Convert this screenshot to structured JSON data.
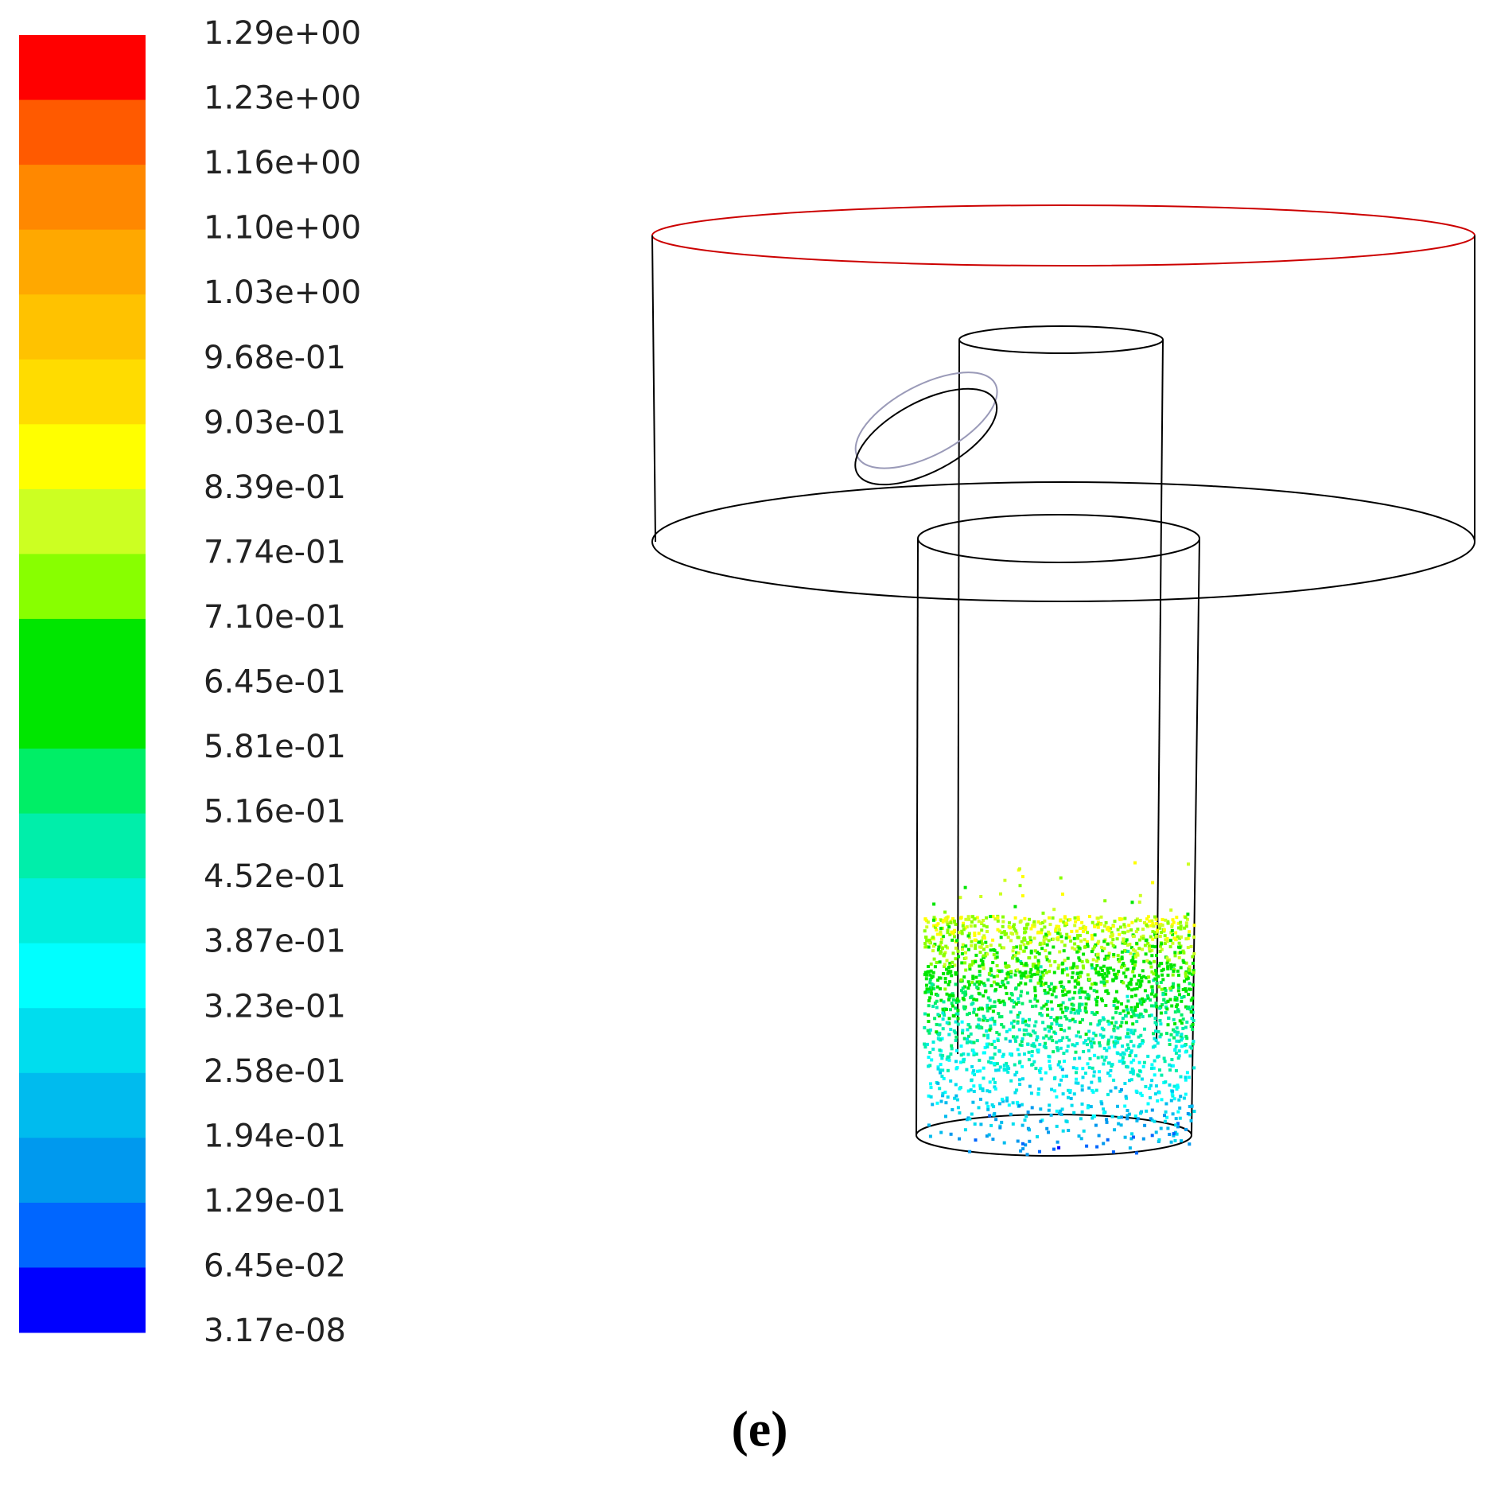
{
  "colorbar": {
    "labels": [
      "1.29e+00",
      "1.23e+00",
      "1.16e+00",
      "1.10e+00",
      "1.03e+00",
      "9.68e-01",
      "9.03e-01",
      "8.39e-01",
      "7.74e-01",
      "7.10e-01",
      "6.45e-01",
      "5.81e-01",
      "5.16e-01",
      "4.52e-01",
      "3.87e-01",
      "3.23e-01",
      "2.58e-01",
      "1.94e-01",
      "1.29e-01",
      "6.45e-02",
      "3.17e-08"
    ],
    "colors": [
      "#ff0000",
      "#ff5a00",
      "#ff8800",
      "#ffa800",
      "#ffc200",
      "#ffdc00",
      "#ffff00",
      "#ccff22",
      "#88ff00",
      "#00e600",
      "#00e600",
      "#00ee66",
      "#00eeaa",
      "#00eedd",
      "#00ffff",
      "#00ddee",
      "#00bbee",
      "#0099ee",
      "#0066ff",
      "#0000ff"
    ]
  },
  "caption": "(e)"
}
